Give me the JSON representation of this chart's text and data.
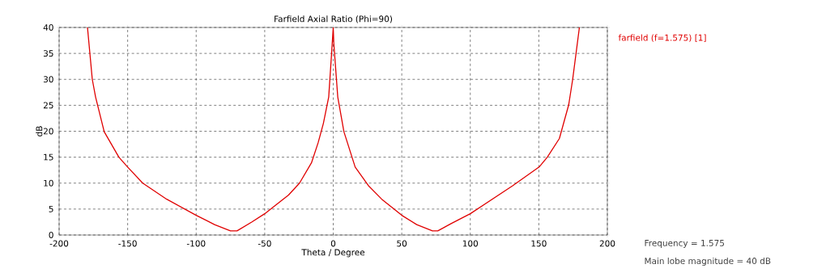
{
  "chart_data": {
    "type": "line",
    "title": "Farfield  Axial Ratio (Phi=90)",
    "xlabel": "Theta / Degree",
    "ylabel": "dB",
    "xlim": [
      -200,
      200
    ],
    "ylim": [
      0,
      40
    ],
    "xticks": [
      -200,
      -150,
      -100,
      -50,
      0,
      50,
      100,
      150,
      200
    ],
    "yticks": [
      0,
      5,
      10,
      15,
      20,
      25,
      30,
      35,
      40
    ],
    "grid": true,
    "legend": "top right",
    "line_style": "solid",
    "marker": "none",
    "annotations": [
      "Frequency = 1.575",
      "Main lobe magnitude =    40 dB"
    ],
    "series": [
      {
        "name": "farfield (f=1.575) [1]",
        "color": "#e00000",
        "x": [
          -179.3,
          -175.8,
          -173.4,
          -167.1,
          -156.4,
          -150,
          -139,
          -121.5,
          -100,
          -86.6,
          -75,
          -70.2,
          -59.5,
          -50,
          -32.6,
          -24.6,
          -15.9,
          -11.0,
          -7.2,
          -3.3,
          -1.2,
          0,
          0.4,
          3.3,
          7.8,
          16,
          25.7,
          35.4,
          50,
          60.9,
          72.4,
          76.3,
          86,
          100,
          130.9,
          150.2,
          156.2,
          165,
          171.8,
          174.7,
          179.6
        ],
        "values": [
          40,
          30.0,
          26.6,
          19.9,
          15.0,
          13.1,
          10.0,
          6.9,
          3.8,
          2.0,
          0.8,
          0.8,
          2.5,
          4.1,
          7.7,
          10.0,
          13.9,
          17.8,
          21.5,
          26.6,
          35.0,
          40,
          37,
          26.6,
          19.9,
          13.1,
          9.5,
          6.9,
          3.8,
          2.0,
          0.8,
          0.8,
          2.2,
          4.1,
          9.5,
          13.1,
          15.0,
          18.6,
          25.1,
          30.0,
          40
        ]
      }
    ]
  }
}
